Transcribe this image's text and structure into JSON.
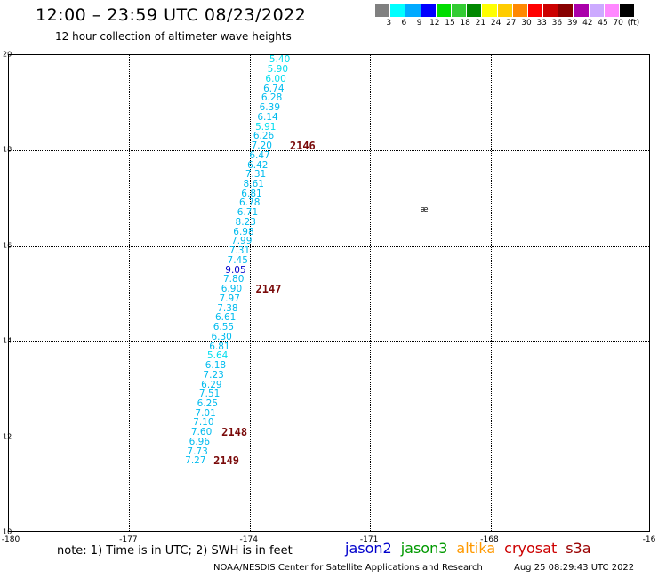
{
  "title": "12:00 – 23:59 UTC 08/23/2022",
  "subtitle": "12 hour collection of altimeter wave heights",
  "colorbar": {
    "colors": [
      "#808080",
      "#00ffff",
      "#00aaff",
      "#0000ff",
      "#00dd00",
      "#33cc33",
      "#008800",
      "#ffff00",
      "#ffcc00",
      "#ff8800",
      "#ff0000",
      "#cc0000",
      "#880000",
      "#aa00aa",
      "#ccaaff",
      "#ff88ff",
      "#000000"
    ],
    "labels": [
      "3",
      "6",
      "9",
      "12",
      "15",
      "18",
      "21",
      "24",
      "27",
      "30",
      "33",
      "36",
      "39",
      "42",
      "45",
      "70",
      "(ft)"
    ]
  },
  "map": {
    "lon_range": [
      -180,
      -164
    ],
    "lat_range": [
      10,
      20
    ],
    "lon_ticks": [
      "-180",
      "-177",
      "-174",
      "-171",
      "-168",
      "-16"
    ],
    "lat_ticks": [
      "20",
      "18",
      "16",
      "14",
      "12",
      "10"
    ],
    "island_label": "æ"
  },
  "points": [
    {
      "lon": -173.25,
      "lat": 19.9,
      "v": "5.40",
      "c": "#00ddee"
    },
    {
      "lon": -173.3,
      "lat": 19.7,
      "v": "5.90",
      "c": "#00ddee"
    },
    {
      "lon": -173.35,
      "lat": 19.5,
      "v": "6.00",
      "c": "#00ddee"
    },
    {
      "lon": -173.4,
      "lat": 19.3,
      "v": "6.74",
      "c": "#00bbee"
    },
    {
      "lon": -173.45,
      "lat": 19.1,
      "v": "6.28",
      "c": "#00bbee"
    },
    {
      "lon": -173.5,
      "lat": 18.9,
      "v": "6.39",
      "c": "#00bbee"
    },
    {
      "lon": -173.55,
      "lat": 18.7,
      "v": "6.14",
      "c": "#00bbee"
    },
    {
      "lon": -173.6,
      "lat": 18.5,
      "v": "5.91",
      "c": "#00ddee"
    },
    {
      "lon": -173.65,
      "lat": 18.3,
      "v": "6.26",
      "c": "#00bbee"
    },
    {
      "lon": -173.7,
      "lat": 18.1,
      "v": "7.20",
      "c": "#00bbee"
    },
    {
      "lon": -173.75,
      "lat": 17.9,
      "v": "6.47",
      "c": "#00bbee"
    },
    {
      "lon": -173.8,
      "lat": 17.7,
      "v": "6.42",
      "c": "#00bbee"
    },
    {
      "lon": -173.85,
      "lat": 17.5,
      "v": "7.31",
      "c": "#00bbee"
    },
    {
      "lon": -173.9,
      "lat": 17.3,
      "v": "8.61",
      "c": "#00bbee"
    },
    {
      "lon": -173.95,
      "lat": 17.1,
      "v": "6.81",
      "c": "#00bbee"
    },
    {
      "lon": -174.0,
      "lat": 16.9,
      "v": "6.78",
      "c": "#00bbee"
    },
    {
      "lon": -174.05,
      "lat": 16.7,
      "v": "6.71",
      "c": "#00bbee"
    },
    {
      "lon": -174.1,
      "lat": 16.5,
      "v": "8.23",
      "c": "#00bbee"
    },
    {
      "lon": -174.15,
      "lat": 16.3,
      "v": "6.98",
      "c": "#00bbee"
    },
    {
      "lon": -174.2,
      "lat": 16.1,
      "v": "7.99",
      "c": "#00bbee"
    },
    {
      "lon": -174.25,
      "lat": 15.9,
      "v": "7.31",
      "c": "#00bbee"
    },
    {
      "lon": -174.3,
      "lat": 15.7,
      "v": "7.45",
      "c": "#00bbee"
    },
    {
      "lon": -174.35,
      "lat": 15.5,
      "v": "9.05",
      "c": "#0000cc"
    },
    {
      "lon": -174.4,
      "lat": 15.3,
      "v": "7.80",
      "c": "#00bbee"
    },
    {
      "lon": -174.45,
      "lat": 15.1,
      "v": "6.90",
      "c": "#00bbee"
    },
    {
      "lon": -174.5,
      "lat": 14.9,
      "v": "7.97",
      "c": "#00bbee"
    },
    {
      "lon": -174.55,
      "lat": 14.7,
      "v": "7.38",
      "c": "#00bbee"
    },
    {
      "lon": -174.6,
      "lat": 14.5,
      "v": "6.61",
      "c": "#00bbee"
    },
    {
      "lon": -174.65,
      "lat": 14.3,
      "v": "6.55",
      "c": "#00bbee"
    },
    {
      "lon": -174.7,
      "lat": 14.1,
      "v": "6.30",
      "c": "#00bbee"
    },
    {
      "lon": -174.75,
      "lat": 13.9,
      "v": "6.81",
      "c": "#00bbee"
    },
    {
      "lon": -174.8,
      "lat": 13.7,
      "v": "5.64",
      "c": "#00ddee"
    },
    {
      "lon": -174.85,
      "lat": 13.5,
      "v": "6.18",
      "c": "#00bbee"
    },
    {
      "lon": -174.9,
      "lat": 13.3,
      "v": "7.23",
      "c": "#00bbee"
    },
    {
      "lon": -174.95,
      "lat": 13.1,
      "v": "6.29",
      "c": "#00bbee"
    },
    {
      "lon": -175.0,
      "lat": 12.9,
      "v": "7.51",
      "c": "#00bbee"
    },
    {
      "lon": -175.05,
      "lat": 12.7,
      "v": "6.25",
      "c": "#00bbee"
    },
    {
      "lon": -175.1,
      "lat": 12.5,
      "v": "7.01",
      "c": "#00bbee"
    },
    {
      "lon": -175.15,
      "lat": 12.3,
      "v": "7.10",
      "c": "#00bbee"
    },
    {
      "lon": -175.2,
      "lat": 12.1,
      "v": "7.60",
      "c": "#00bbee"
    },
    {
      "lon": -175.25,
      "lat": 11.9,
      "v": "6.96",
      "c": "#00bbee"
    },
    {
      "lon": -175.3,
      "lat": 11.7,
      "v": "7.73",
      "c": "#00bbee"
    },
    {
      "lon": -175.35,
      "lat": 11.5,
      "v": "7.27",
      "c": "#00bbee"
    }
  ],
  "tracks": [
    {
      "lon": -173.0,
      "lat": 18.1,
      "label": "2146"
    },
    {
      "lon": -173.85,
      "lat": 15.1,
      "label": "2147"
    },
    {
      "lon": -174.7,
      "lat": 12.1,
      "label": "2148"
    },
    {
      "lon": -174.9,
      "lat": 11.5,
      "label": "2149"
    }
  ],
  "note": "note:  1) Time is in UTC;  2) SWH is in feet",
  "legend": [
    {
      "name": "jason2",
      "color": "#0000cc"
    },
    {
      "name": "jason3",
      "color": "#009900"
    },
    {
      "name": "altika",
      "color": "#ff9900"
    },
    {
      "name": "cryosat",
      "color": "#cc0000"
    },
    {
      "name": "s3a",
      "color": "#990000"
    }
  ],
  "credit": "NOAA/NESDIS Center for Satellite Applications and Research",
  "timestamp": "Aug 25 08:29:43 UTC 2022"
}
